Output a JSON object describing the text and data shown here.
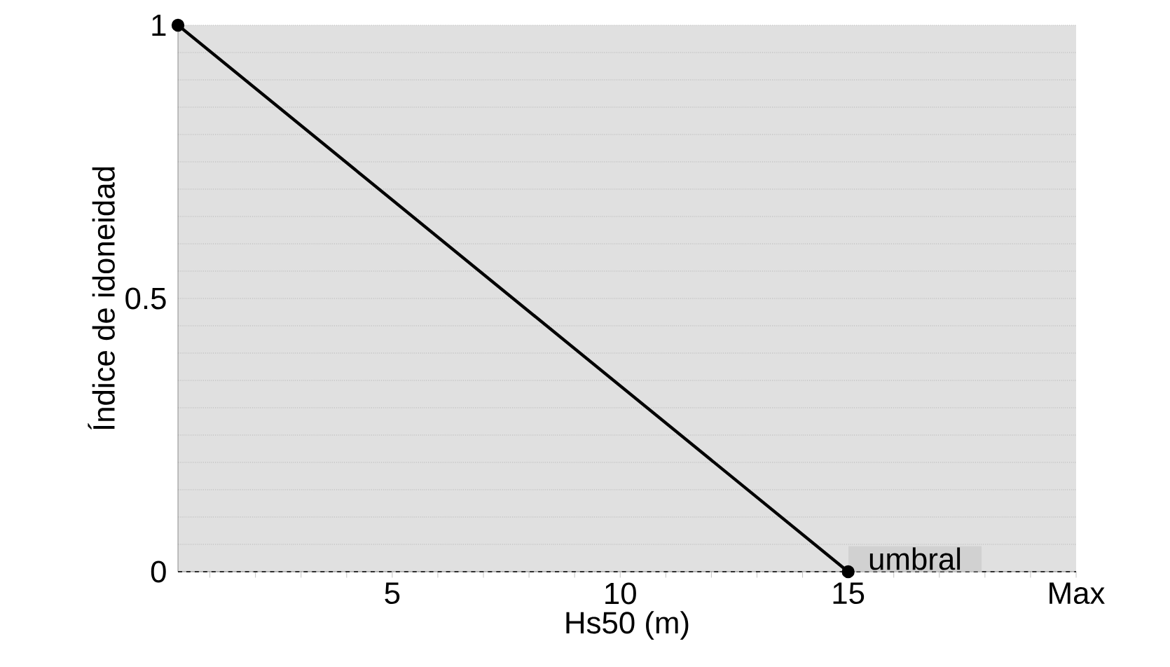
{
  "chart_data": {
    "type": "line",
    "xlabel": "Hs50 (m)",
    "ylabel": "Índice de idoneidad",
    "x": [
      0.3,
      15
    ],
    "series": [
      {
        "color": "#000000",
        "values": [
          1,
          0
        ]
      }
    ],
    "xlim": [
      0.3,
      20
    ],
    "xticks": [
      {
        "value": 1,
        "label": null
      },
      {
        "value": 2,
        "label": null
      },
      {
        "value": 3,
        "label": null
      },
      {
        "value": 4,
        "label": null
      },
      5,
      {
        "value": 6,
        "label": null
      },
      {
        "value": 7,
        "label": null
      },
      {
        "value": 8,
        "label": null
      },
      {
        "value": 9,
        "label": null
      },
      10,
      {
        "value": 11,
        "label": null
      },
      {
        "value": 12,
        "label": null
      },
      {
        "value": 13,
        "label": null
      },
      {
        "value": 14,
        "label": null
      },
      15,
      {
        "value": 16,
        "label": null
      },
      {
        "value": 17,
        "label": null
      },
      {
        "value": 18,
        "label": null
      },
      {
        "value": 19,
        "label": null
      },
      {
        "value": 20,
        "label": "Max"
      }
    ],
    "ylim": [
      0,
      1
    ],
    "yticks": [
      0,
      {
        "value": 0.05,
        "label": null
      },
      {
        "value": 0.1,
        "label": null
      },
      {
        "value": 0.15,
        "label": null
      },
      {
        "value": 0.2,
        "label": null
      },
      {
        "value": 0.25,
        "label": null
      },
      {
        "value": 0.3,
        "label": null
      },
      {
        "value": 0.35,
        "label": null
      },
      {
        "value": 0.4,
        "label": null
      },
      {
        "value": 0.45,
        "label": null
      },
      0.5,
      {
        "value": 0.55,
        "label": null
      },
      {
        "value": 0.6,
        "label": null
      },
      {
        "value": 0.65,
        "label": null
      },
      {
        "value": 0.7,
        "label": null
      },
      {
        "value": 0.75,
        "label": null
      },
      {
        "value": 0.8,
        "label": null
      },
      {
        "value": 0.85,
        "label": null
      },
      {
        "value": 0.9,
        "label": null
      },
      {
        "value": 0.95,
        "label": null
      },
      1
    ],
    "grid": "y",
    "marker": "circle",
    "line_style": "solid",
    "ref_lines": [
      {
        "axis": "y",
        "value": 0,
        "line_style": "dashed",
        "color": "#000000"
      }
    ],
    "annotations": [
      {
        "text": "umbral",
        "x": 15,
        "y": 0
      }
    ]
  }
}
